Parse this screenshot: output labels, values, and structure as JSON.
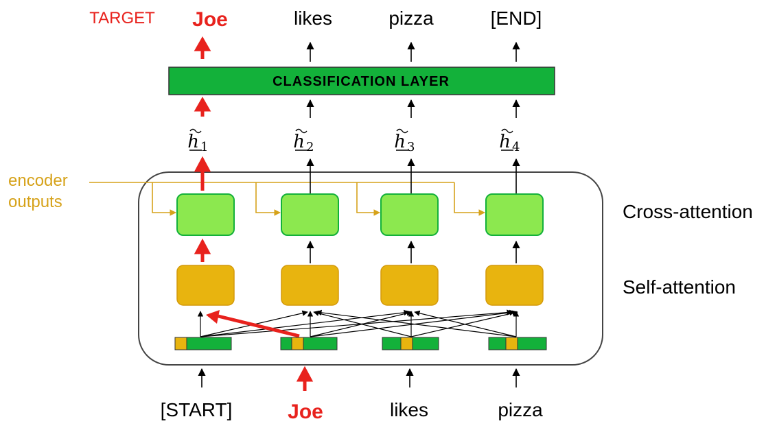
{
  "target_label": "TARGET",
  "outputs": [
    "Joe",
    "likes",
    "pizza",
    "[END]"
  ],
  "classification_label": "CLASSIFICATION LAYER",
  "hidden_states": [
    {
      "base": "h",
      "sub": "1"
    },
    {
      "base": "h",
      "sub": "2"
    },
    {
      "base": "h",
      "sub": "3"
    },
    {
      "base": "h",
      "sub": "4"
    }
  ],
  "encoder_label": [
    "encoder",
    "outputs"
  ],
  "cross_attention_label": "Cross-attention",
  "self_attention_label": "Self-attention",
  "inputs": [
    "[START]",
    "Joe",
    "likes",
    "pizza"
  ],
  "colors": {
    "red": "#e8221d",
    "green_dark": "#13b13a",
    "green_light": "#8ce84f",
    "orange": "#e8b40f",
    "encoder_line": "#d6a21a",
    "box_border": "#444444"
  }
}
